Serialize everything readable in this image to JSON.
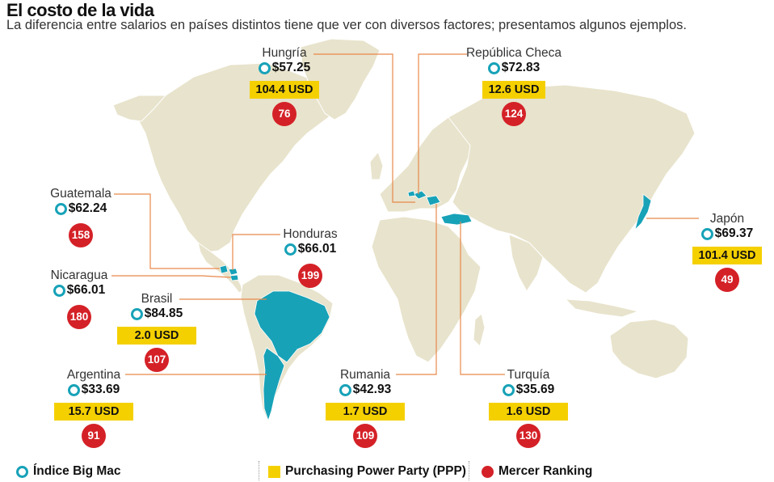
{
  "title": "El costo de la vida",
  "subtitle": "La diferencia entre salarios en países distintos tiene que ver con diversos factores; presentamos algunos ejemplos.",
  "colors": {
    "land": "#e8e3cc",
    "highlight": "#17a2b8",
    "ppp": "#f5d000",
    "mercer": "#d42127",
    "leader": "#e8894a"
  },
  "countries": {
    "hungria": {
      "name": "Hungría",
      "bigmac": "$57.25",
      "ppp": "104.4 USD",
      "mercer": "76"
    },
    "checa": {
      "name": "República Checa",
      "bigmac": "$72.83",
      "ppp": "12.6 USD",
      "mercer": "124"
    },
    "guatemala": {
      "name": "Guatemala",
      "bigmac": "$62.24",
      "mercer": "158"
    },
    "honduras": {
      "name": "Honduras",
      "bigmac": "$66.01",
      "mercer": "199"
    },
    "nicaragua": {
      "name": "Nicaragua",
      "bigmac": "$66.01",
      "mercer": "180"
    },
    "brasil": {
      "name": "Brasil",
      "bigmac": "$84.85",
      "ppp": "2.0 USD",
      "mercer": "107"
    },
    "argentina": {
      "name": "Argentina",
      "bigmac": "$33.69",
      "ppp": "15.7 USD",
      "mercer": "91"
    },
    "rumania": {
      "name": "Rumania",
      "bigmac": "$42.93",
      "ppp": "1.7 USD",
      "mercer": "109"
    },
    "turquia": {
      "name": "Turquía",
      "bigmac": "$35.69",
      "ppp": "1.6 USD",
      "mercer": "130"
    },
    "japon": {
      "name": "Japón",
      "bigmac": "$69.37",
      "ppp": "101.4 USD",
      "mercer": "49"
    }
  },
  "legend": {
    "bigmac": "Índice Big Mac",
    "ppp": "Purchasing Power Party (PPP)",
    "mercer": "Mercer Ranking"
  }
}
